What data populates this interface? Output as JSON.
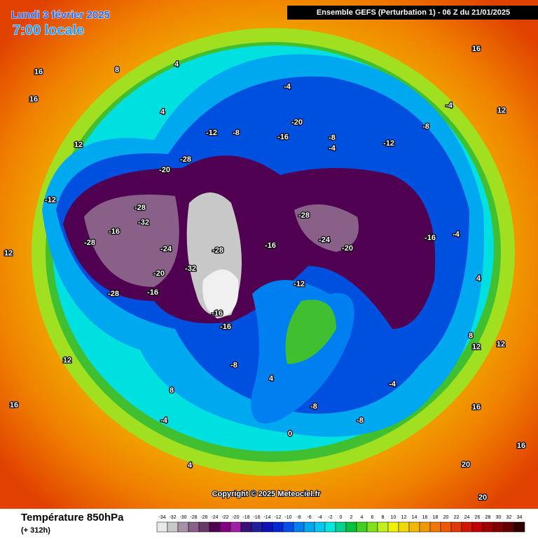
{
  "header": {
    "date": "Lundi 3 février 2025",
    "time": "7:00 locale",
    "model": "Ensemble GEFS  (Perturbation 1)  -  06 Z du 21/01/2025"
  },
  "map": {
    "copyright": "Copyright © 2025 Meteociel.fr",
    "labels": [
      "16",
      "16",
      "8",
      "4",
      "4",
      "-4",
      "-12",
      "-8",
      "-20",
      "-16",
      "-8",
      "-4",
      "-12",
      "-8",
      "-4",
      "16",
      "12",
      "12",
      "-12",
      "-20",
      "-28",
      "-28",
      "-32",
      "-16",
      "-24",
      "-28",
      "-28",
      "-20",
      "-16",
      "-28",
      "-32",
      "-16",
      "-16",
      "-16",
      "-28",
      "-24",
      "-20",
      "-16",
      "-12",
      "-8",
      "-4",
      "4",
      "8",
      "12",
      "16",
      "20",
      "-4",
      "-8",
      "-8",
      "0",
      "4",
      "12",
      "16",
      "20",
      "12",
      "16",
      "8",
      "-4",
      "4",
      "12"
    ]
  },
  "footer": {
    "title": "Température 850hPa",
    "subtitle": "(+ 312h)"
  },
  "colorbar": {
    "values": [
      -34,
      -32,
      -30,
      -28,
      -26,
      -24,
      -22,
      -20,
      -18,
      -16,
      -14,
      -12,
      -10,
      -8,
      -6,
      -4,
      -2,
      0,
      2,
      4,
      6,
      8,
      10,
      12,
      14,
      16,
      18,
      20,
      22,
      24,
      26,
      28,
      30,
      32,
      34
    ],
    "colors": [
      "#e8e8e8",
      "#c8c8c8",
      "#a890a8",
      "#886088",
      "#683868",
      "#500050",
      "#800080",
      "#a020a8",
      "#381078",
      "#202098",
      "#1010b8",
      "#0028d0",
      "#0050e8",
      "#0080f0",
      "#00a8f0",
      "#00c8f0",
      "#00e8e0",
      "#00d090",
      "#00c040",
      "#40d020",
      "#80e020",
      "#c0f020",
      "#f0f000",
      "#f0d800",
      "#f0b800",
      "#f09800",
      "#f07800",
      "#f05800",
      "#e03800",
      "#d01800",
      "#c00000",
      "#a00000",
      "#800000",
      "#600000",
      "#300000"
    ]
  }
}
